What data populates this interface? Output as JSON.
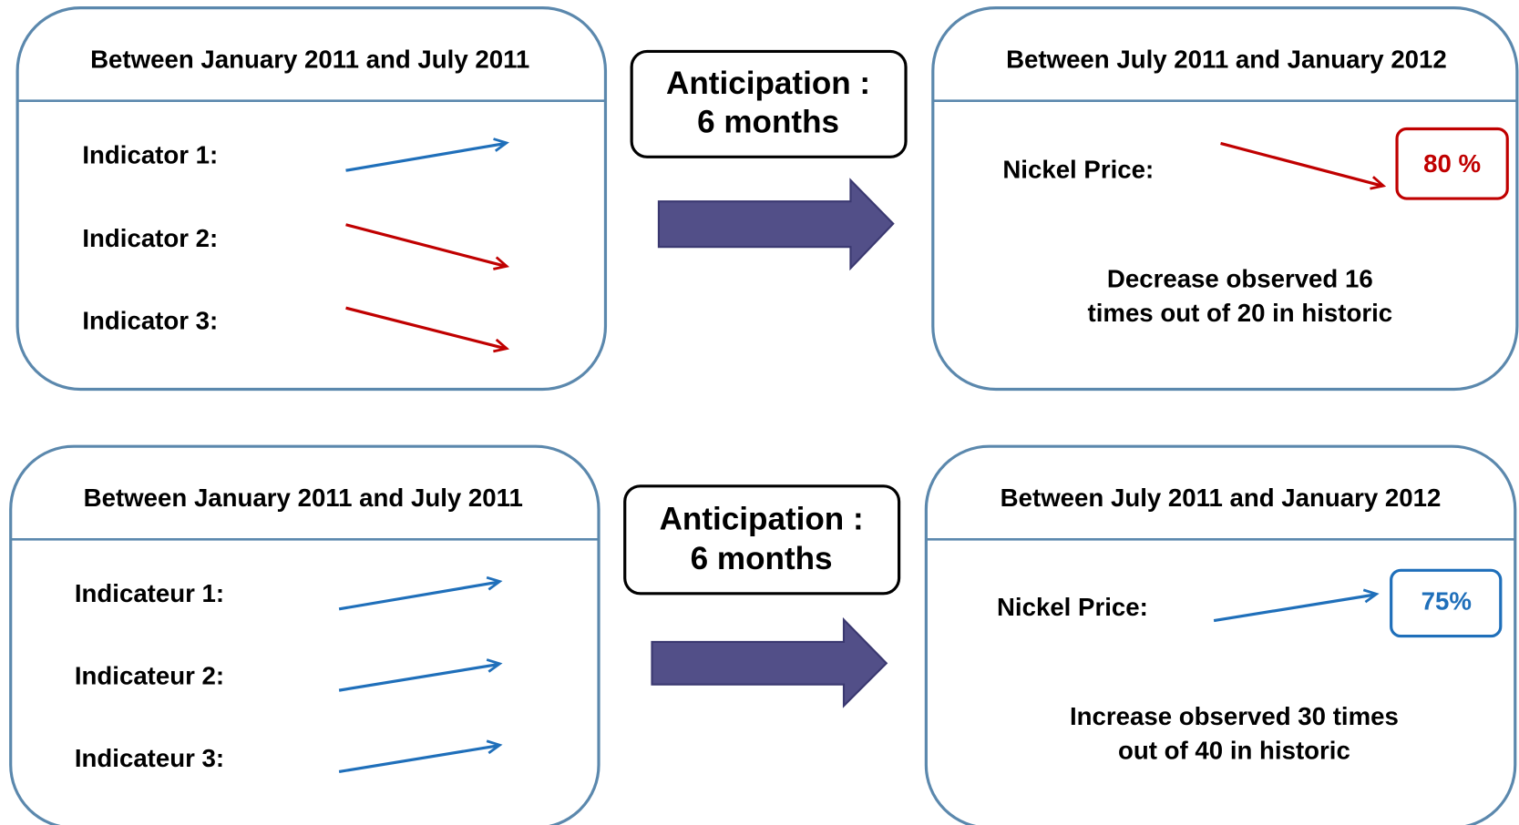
{
  "panels": [
    {
      "before": {
        "title": "Between January 2011 and July 2011",
        "indicators": [
          "Indicator 1:",
          "Indicator 2:",
          "Indicator 3:"
        ]
      },
      "anticipation": [
        "Anticipation :",
        "6 months"
      ],
      "after": {
        "title": "Between July 2011 and January 2012",
        "price_label": "Nickel Price:",
        "probability": "80 %",
        "description": [
          "Decrease observed 16",
          "times out of 20 in historic"
        ]
      }
    },
    {
      "before": {
        "title": "Between January 2011 and July 2011",
        "indicators": [
          "Indicateur 1:",
          "Indicateur 2:",
          "Indicateur 3:"
        ]
      },
      "anticipation": [
        "Anticipation :",
        "6 months"
      ],
      "after": {
        "title": "Between July 2011 and January 2012",
        "price_label": "Nickel Price:",
        "probability": "75%",
        "description": [
          "Increase observed 30 times",
          "out of 40 in historic"
        ]
      }
    }
  ]
}
